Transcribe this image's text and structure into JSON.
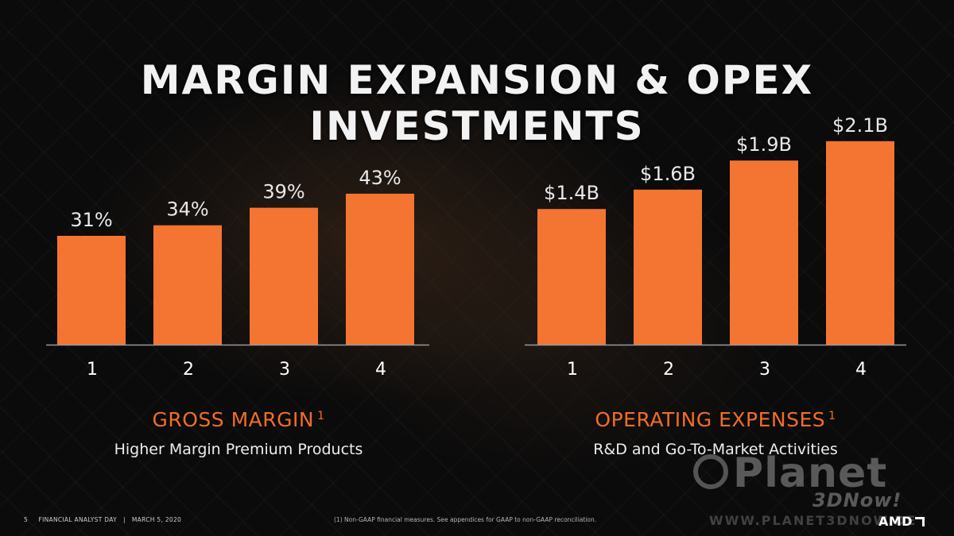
{
  "title": "MARGIN EXPANSION & OPEX INVESTMENTS",
  "chart_data": [
    {
      "type": "bar",
      "categories": [
        "1",
        "2",
        "3",
        "4"
      ],
      "values": [
        31,
        34,
        39,
        43
      ],
      "labels": [
        "31%",
        "34%",
        "39%",
        "43%"
      ],
      "unit": "%",
      "title": "GROSS MARGIN",
      "footnote_marker": "1",
      "subtitle": "Higher Margin Premium Products",
      "bar_color": "#f47531"
    },
    {
      "type": "bar",
      "categories": [
        "1",
        "2",
        "3",
        "4"
      ],
      "values": [
        1.4,
        1.6,
        1.9,
        2.1
      ],
      "labels": [
        "$1.4B",
        "$1.6B",
        "$1.9B",
        "$2.1B"
      ],
      "unit": "$B",
      "title": "OPERATING EXPENSES",
      "footnote_marker": "1",
      "subtitle": "R&D and Go-To-Market Activities",
      "bar_color": "#f47531"
    }
  ],
  "footer": {
    "page_number": "5",
    "event": "FINANCIAL ANALYST DAY",
    "separator": "|",
    "date": "MARCH 5, 2020",
    "note": "(1)  Non-GAAP financial measures.  See appendices for GAAP to non-GAAP reconciliation."
  },
  "watermark": {
    "brand": "Planet",
    "sub": "3DNow!",
    "url": "WWW.PLANET3DNOW.DE"
  },
  "logo": "AMD",
  "colors": {
    "accent": "#f06d25",
    "bar": "#f47531",
    "background": "#0b0b0b"
  }
}
